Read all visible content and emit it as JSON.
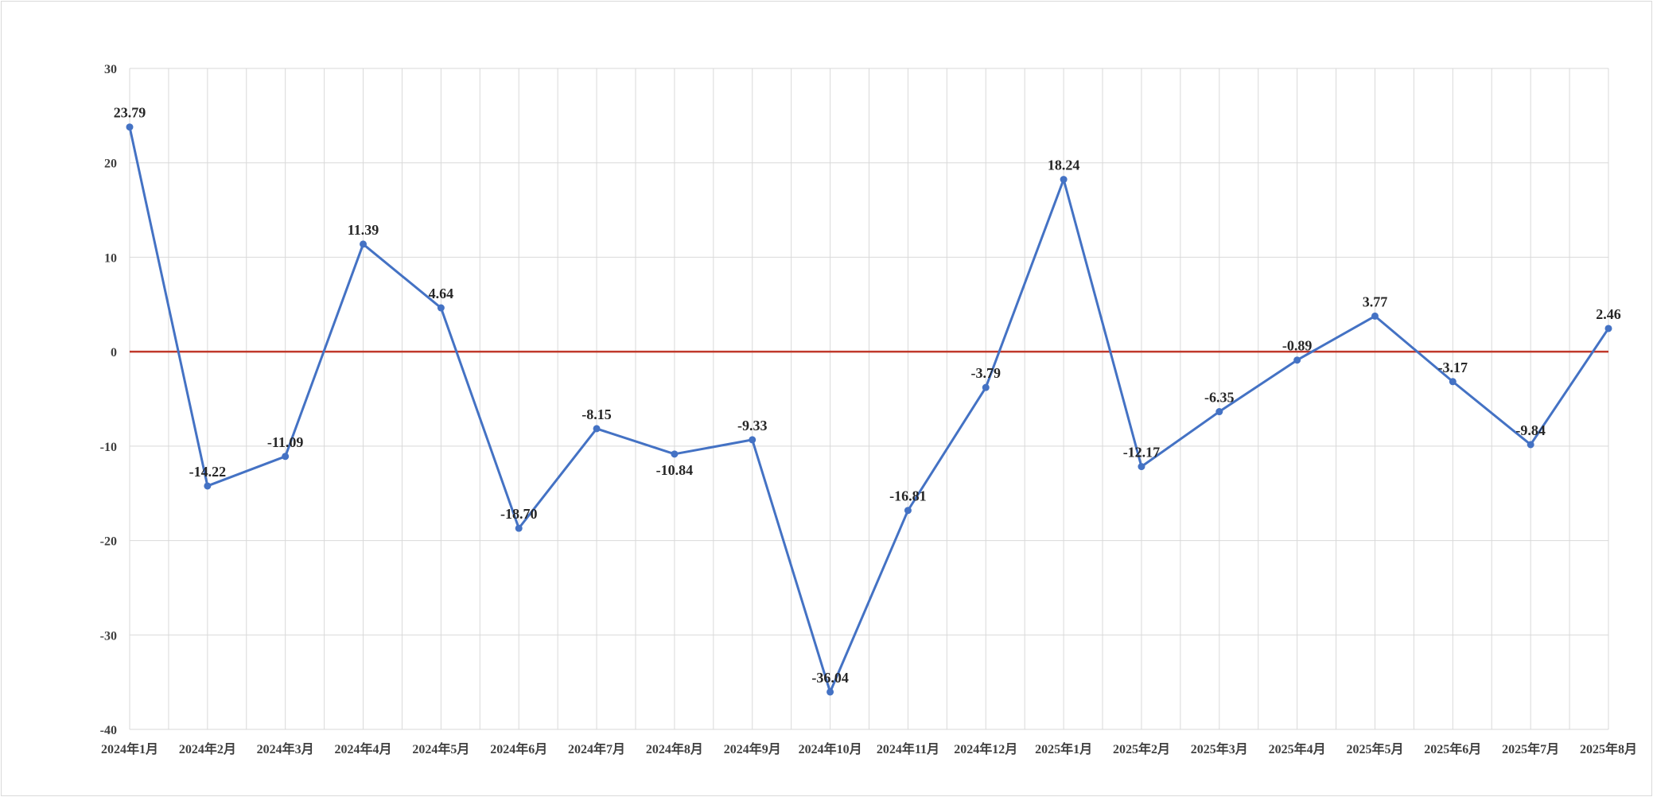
{
  "chart_data": {
    "type": "line",
    "title": "",
    "xlabel": "",
    "ylabel": "",
    "categories": [
      "2024年1月",
      "2024年2月",
      "2024年3月",
      "2024年4月",
      "2024年5月",
      "2024年6月",
      "2024年7月",
      "2024年8月",
      "2024年9月",
      "2024年10月",
      "2024年11月",
      "2024年12月",
      "2025年1月",
      "2025年2月",
      "2025年3月",
      "2025年4月",
      "2025年5月",
      "2025年6月",
      "2025年7月",
      "2025年8月"
    ],
    "series": [
      {
        "values": [
          23.79,
          -14.22,
          -11.09,
          11.39,
          4.64,
          -18.7,
          -8.15,
          -10.84,
          -9.33,
          -36.04,
          -16.81,
          -3.79,
          18.24,
          -12.17,
          -6.35,
          -0.89,
          3.77,
          -3.17,
          -9.84,
          2.46
        ],
        "labels": [
          "23.79",
          "-14.22",
          "-11.09",
          "11.39",
          "4.64",
          "-18.70",
          "-8.15",
          "-10.84",
          "-9.33",
          "-36.04",
          "-16.81",
          "-3.79",
          "18.24",
          "-12.17",
          "-6.35",
          "-0.89",
          "3.77",
          "-3.17",
          "-9.84",
          "2.46"
        ],
        "color": "#4472C4"
      }
    ],
    "ylim": [
      -40,
      30
    ],
    "yticks": [
      30,
      20,
      10,
      0,
      -10,
      -20,
      -30,
      -40
    ],
    "ytick_labels": [
      "30",
      "20",
      "10",
      "0",
      "-10",
      "-20",
      "-30",
      "-40"
    ],
    "grid": true,
    "zero_line_color": "#C0392B",
    "grid_color": "#d9d9d9",
    "legend": "none"
  }
}
